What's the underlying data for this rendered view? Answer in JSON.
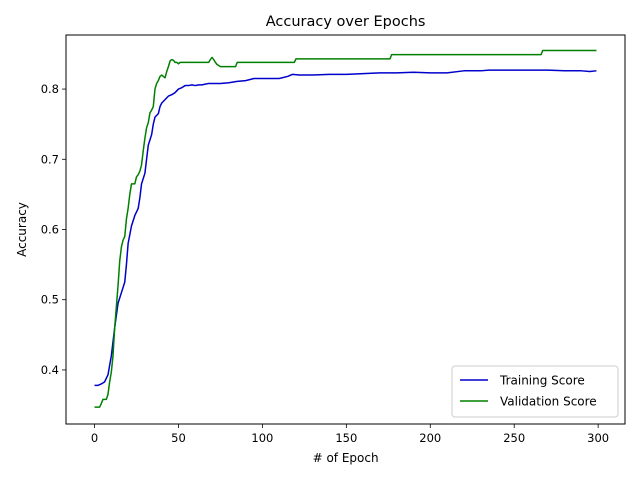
{
  "chart_data": {
    "type": "line",
    "title": "Accuracy over Epochs",
    "xlabel": "# of Epoch",
    "ylabel": "Accuracy",
    "xlim": [
      -17,
      316
    ],
    "ylim": [
      0.323,
      0.877
    ],
    "xticks": [
      0,
      50,
      100,
      150,
      200,
      250,
      300
    ],
    "yticks": [
      0.4,
      0.5,
      0.6,
      0.7,
      0.8
    ],
    "ytick_labels": [
      "0.4",
      "0.5",
      "0.6",
      "0.7",
      "0.8"
    ],
    "grid": false,
    "legend_position": "lower-right",
    "series": [
      {
        "name": "Training Score",
        "color": "#0000cc",
        "points": [
          [
            0,
            0.378
          ],
          [
            2,
            0.378
          ],
          [
            4,
            0.38
          ],
          [
            6,
            0.383
          ],
          [
            8,
            0.393
          ],
          [
            10,
            0.42
          ],
          [
            12,
            0.46
          ],
          [
            14,
            0.495
          ],
          [
            16,
            0.51
          ],
          [
            18,
            0.525
          ],
          [
            19,
            0.55
          ],
          [
            20,
            0.58
          ],
          [
            22,
            0.605
          ],
          [
            24,
            0.62
          ],
          [
            26,
            0.63
          ],
          [
            27,
            0.645
          ],
          [
            28,
            0.665
          ],
          [
            30,
            0.68
          ],
          [
            31,
            0.7
          ],
          [
            32,
            0.72
          ],
          [
            34,
            0.735
          ],
          [
            35,
            0.75
          ],
          [
            36,
            0.76
          ],
          [
            38,
            0.765
          ],
          [
            39,
            0.775
          ],
          [
            40,
            0.78
          ],
          [
            42,
            0.785
          ],
          [
            44,
            0.79
          ],
          [
            46,
            0.792
          ],
          [
            48,
            0.795
          ],
          [
            50,
            0.8
          ],
          [
            52,
            0.802
          ],
          [
            54,
            0.805
          ],
          [
            56,
            0.805
          ],
          [
            58,
            0.806
          ],
          [
            60,
            0.805
          ],
          [
            62,
            0.806
          ],
          [
            64,
            0.806
          ],
          [
            66,
            0.807
          ],
          [
            68,
            0.808
          ],
          [
            70,
            0.808
          ],
          [
            75,
            0.808
          ],
          [
            80,
            0.809
          ],
          [
            85,
            0.811
          ],
          [
            90,
            0.812
          ],
          [
            95,
            0.815
          ],
          [
            100,
            0.815
          ],
          [
            105,
            0.815
          ],
          [
            110,
            0.815
          ],
          [
            115,
            0.818
          ],
          [
            118,
            0.821
          ],
          [
            122,
            0.82
          ],
          [
            130,
            0.82
          ],
          [
            140,
            0.821
          ],
          [
            150,
            0.821
          ],
          [
            160,
            0.822
          ],
          [
            170,
            0.823
          ],
          [
            180,
            0.823
          ],
          [
            190,
            0.824
          ],
          [
            200,
            0.823
          ],
          [
            210,
            0.823
          ],
          [
            220,
            0.826
          ],
          [
            230,
            0.826
          ],
          [
            235,
            0.827
          ],
          [
            240,
            0.827
          ],
          [
            250,
            0.827
          ],
          [
            260,
            0.827
          ],
          [
            270,
            0.827
          ],
          [
            280,
            0.826
          ],
          [
            290,
            0.826
          ],
          [
            295,
            0.825
          ],
          [
            299,
            0.826
          ]
        ]
      },
      {
        "name": "Validation Score",
        "color": "#008000",
        "points": [
          [
            0,
            0.347
          ],
          [
            2,
            0.347
          ],
          [
            3,
            0.347
          ],
          [
            4,
            0.352
          ],
          [
            5,
            0.358
          ],
          [
            7,
            0.358
          ],
          [
            8,
            0.365
          ],
          [
            9,
            0.383
          ],
          [
            10,
            0.397
          ],
          [
            11,
            0.42
          ],
          [
            12,
            0.46
          ],
          [
            13,
            0.49
          ],
          [
            14,
            0.52
          ],
          [
            15,
            0.555
          ],
          [
            16,
            0.575
          ],
          [
            17,
            0.585
          ],
          [
            18,
            0.59
          ],
          [
            19,
            0.615
          ],
          [
            20,
            0.63
          ],
          [
            21,
            0.65
          ],
          [
            22,
            0.665
          ],
          [
            23,
            0.665
          ],
          [
            24,
            0.665
          ],
          [
            25,
            0.675
          ],
          [
            26,
            0.678
          ],
          [
            27,
            0.683
          ],
          [
            28,
            0.692
          ],
          [
            29,
            0.712
          ],
          [
            30,
            0.73
          ],
          [
            31,
            0.745
          ],
          [
            32,
            0.752
          ],
          [
            33,
            0.766
          ],
          [
            34,
            0.77
          ],
          [
            35,
            0.775
          ],
          [
            36,
            0.8
          ],
          [
            37,
            0.808
          ],
          [
            38,
            0.812
          ],
          [
            39,
            0.818
          ],
          [
            40,
            0.82
          ],
          [
            41,
            0.818
          ],
          [
            42,
            0.816
          ],
          [
            43,
            0.825
          ],
          [
            44,
            0.832
          ],
          [
            45,
            0.84
          ],
          [
            46,
            0.842
          ],
          [
            47,
            0.841
          ],
          [
            48,
            0.838
          ],
          [
            49,
            0.838
          ],
          [
            50,
            0.836
          ],
          [
            51,
            0.838
          ],
          [
            53,
            0.838
          ],
          [
            55,
            0.838
          ],
          [
            60,
            0.838
          ],
          [
            65,
            0.838
          ],
          [
            68,
            0.838
          ],
          [
            69,
            0.842
          ],
          [
            70,
            0.845
          ],
          [
            71,
            0.842
          ],
          [
            72,
            0.838
          ],
          [
            73,
            0.835
          ],
          [
            75,
            0.832
          ],
          [
            80,
            0.832
          ],
          [
            84,
            0.832
          ],
          [
            85,
            0.838
          ],
          [
            90,
            0.838
          ],
          [
            100,
            0.838
          ],
          [
            110,
            0.838
          ],
          [
            119,
            0.838
          ],
          [
            120,
            0.843
          ],
          [
            130,
            0.843
          ],
          [
            140,
            0.843
          ],
          [
            150,
            0.843
          ],
          [
            160,
            0.843
          ],
          [
            170,
            0.843
          ],
          [
            176,
            0.843
          ],
          [
            177,
            0.849
          ],
          [
            190,
            0.849
          ],
          [
            200,
            0.849
          ],
          [
            210,
            0.849
          ],
          [
            220,
            0.849
          ],
          [
            230,
            0.849
          ],
          [
            240,
            0.849
          ],
          [
            250,
            0.849
          ],
          [
            260,
            0.849
          ],
          [
            266,
            0.849
          ],
          [
            267,
            0.855
          ],
          [
            280,
            0.855
          ],
          [
            290,
            0.855
          ],
          [
            299,
            0.855
          ]
        ]
      }
    ]
  }
}
